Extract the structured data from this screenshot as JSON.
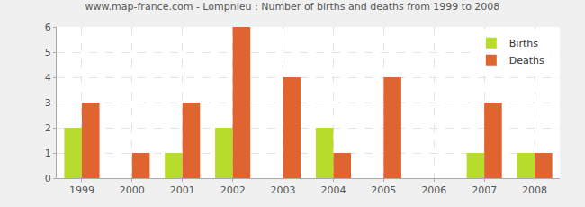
{
  "chart_data": {
    "type": "bar",
    "title": "www.map-france.com - Lompnieu : Number of births and deaths from 1999 to 2008",
    "categories": [
      "1999",
      "2000",
      "2001",
      "2002",
      "2003",
      "2004",
      "2005",
      "2006",
      "2007",
      "2008"
    ],
    "series": [
      {
        "name": "Births",
        "color": "#b8dc2c",
        "values": [
          2,
          0,
          1,
          2,
          0,
          2,
          0,
          0,
          1,
          1
        ]
      },
      {
        "name": "Deaths",
        "color": "#e0642f",
        "values": [
          3,
          1,
          3,
          6,
          4,
          1,
          4,
          0,
          3,
          1
        ]
      }
    ],
    "ylim": [
      0,
      6
    ],
    "yticks": [
      0,
      1,
      2,
      3,
      4,
      5,
      6
    ],
    "grid": true,
    "legend": "top-right"
  }
}
